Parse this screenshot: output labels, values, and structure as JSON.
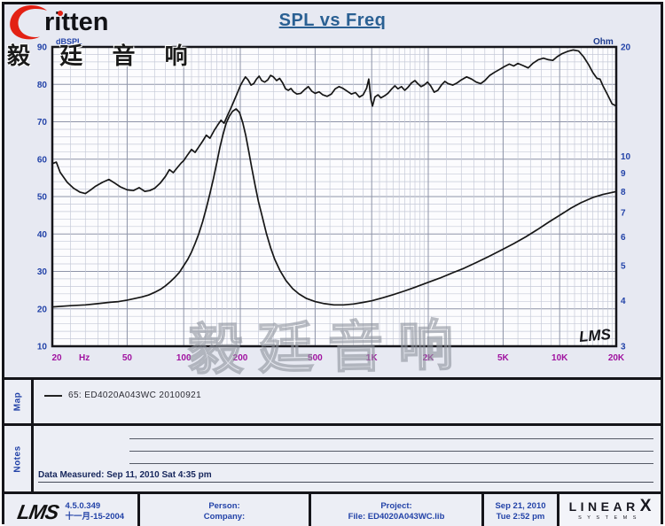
{
  "colors": {
    "accent_blue": "#2343a8",
    "magenta": "#a012a0",
    "title_blue": "#2a6093",
    "navy": "#1d3b8f",
    "curve": "#161616",
    "grid_major": "#8e94a8",
    "grid_minor": "#c6cad8",
    "plot_bg": "#fcfcfe",
    "page_bg": "#e7e9f2",
    "brand_red": "#e32114"
  },
  "logo": {
    "brand": "ritten",
    "subtitle": "毅 廷 音 响"
  },
  "title": "SPL vs Freq",
  "watermark": "毅廷音响",
  "chart_data": {
    "type": "line",
    "title": "SPL vs Freq",
    "x_axis": {
      "scale": "log",
      "range": [
        20,
        20000
      ],
      "unit": "Hz",
      "hz_label": "Hz",
      "tick_values": [
        20,
        50,
        100,
        200,
        500,
        1000,
        2000,
        5000,
        10000,
        20000
      ],
      "tick_labels": [
        "20",
        "50",
        "100",
        "200",
        "500",
        "1K",
        "2K",
        "5K",
        "10K",
        "20K"
      ]
    },
    "y_left": {
      "label": "dBSPL",
      "scale": "linear",
      "range": [
        10,
        90
      ],
      "ticks": [
        90,
        80,
        70,
        60,
        50,
        40,
        30,
        20,
        10
      ]
    },
    "y_right": {
      "label": "Ohm",
      "scale": "log",
      "range": [
        3,
        20
      ],
      "ticks": [
        20,
        10,
        9,
        8,
        7,
        6,
        5,
        4,
        3
      ]
    },
    "inner_logo": "LMS",
    "series": [
      {
        "name": "SPL",
        "axis": "left",
        "points": [
          [
            20,
            58.8
          ],
          [
            21,
            59.2
          ],
          [
            22,
            56.5
          ],
          [
            24,
            53.8
          ],
          [
            26,
            52.2
          ],
          [
            28,
            51.2
          ],
          [
            30,
            50.8
          ],
          [
            32,
            51.8
          ],
          [
            34,
            52.8
          ],
          [
            37,
            53.8
          ],
          [
            40,
            54.6
          ],
          [
            43,
            53.6
          ],
          [
            46,
            52.6
          ],
          [
            50,
            51.8
          ],
          [
            54,
            51.6
          ],
          [
            58,
            52.4
          ],
          [
            62,
            51.4
          ],
          [
            66,
            51.6
          ],
          [
            70,
            52.2
          ],
          [
            75,
            53.6
          ],
          [
            80,
            55.4
          ],
          [
            84,
            57.2
          ],
          [
            88,
            56.4
          ],
          [
            92,
            57.6
          ],
          [
            97,
            59.0
          ],
          [
            100,
            59.6
          ],
          [
            105,
            61.2
          ],
          [
            110,
            62.6
          ],
          [
            115,
            61.8
          ],
          [
            120,
            63.2
          ],
          [
            126,
            64.8
          ],
          [
            132,
            66.4
          ],
          [
            138,
            65.6
          ],
          [
            145,
            67.6
          ],
          [
            152,
            69.2
          ],
          [
            158,
            70.4
          ],
          [
            164,
            69.6
          ],
          [
            170,
            71.4
          ],
          [
            178,
            73.6
          ],
          [
            186,
            75.8
          ],
          [
            192,
            77.4
          ],
          [
            200,
            79.6
          ],
          [
            207,
            81.0
          ],
          [
            213,
            82.0
          ],
          [
            220,
            81.2
          ],
          [
            228,
            79.8
          ],
          [
            236,
            80.2
          ],
          [
            244,
            81.4
          ],
          [
            252,
            82.2
          ],
          [
            260,
            81.0
          ],
          [
            270,
            80.6
          ],
          [
            280,
            81.2
          ],
          [
            290,
            82.4
          ],
          [
            300,
            82.0
          ],
          [
            312,
            81.0
          ],
          [
            324,
            81.6
          ],
          [
            336,
            80.4
          ],
          [
            348,
            78.8
          ],
          [
            360,
            78.4
          ],
          [
            372,
            78.9
          ],
          [
            384,
            78.0
          ],
          [
            400,
            77.4
          ],
          [
            420,
            77.6
          ],
          [
            440,
            78.6
          ],
          [
            460,
            79.4
          ],
          [
            480,
            78.2
          ],
          [
            500,
            77.6
          ],
          [
            525,
            78.0
          ],
          [
            550,
            77.2
          ],
          [
            580,
            76.8
          ],
          [
            610,
            77.4
          ],
          [
            640,
            78.8
          ],
          [
            670,
            79.4
          ],
          [
            700,
            79.0
          ],
          [
            740,
            78.2
          ],
          [
            780,
            77.4
          ],
          [
            820,
            77.8
          ],
          [
            860,
            76.6
          ],
          [
            900,
            77.2
          ],
          [
            940,
            79.0
          ],
          [
            965,
            81.4
          ],
          [
            990,
            76.0
          ],
          [
            1010,
            74.2
          ],
          [
            1040,
            76.6
          ],
          [
            1080,
            77.2
          ],
          [
            1120,
            76.4
          ],
          [
            1170,
            76.9
          ],
          [
            1220,
            77.6
          ],
          [
            1280,
            78.8
          ],
          [
            1330,
            79.6
          ],
          [
            1380,
            78.8
          ],
          [
            1440,
            79.4
          ],
          [
            1500,
            78.4
          ],
          [
            1560,
            79.2
          ],
          [
            1630,
            80.4
          ],
          [
            1700,
            81.0
          ],
          [
            1760,
            80.2
          ],
          [
            1830,
            79.4
          ],
          [
            1900,
            79.8
          ],
          [
            1980,
            80.6
          ],
          [
            2060,
            79.6
          ],
          [
            2150,
            77.9
          ],
          [
            2250,
            78.4
          ],
          [
            2350,
            79.8
          ],
          [
            2450,
            80.8
          ],
          [
            2550,
            80.2
          ],
          [
            2700,
            79.8
          ],
          [
            2850,
            80.4
          ],
          [
            3000,
            81.2
          ],
          [
            3200,
            82.0
          ],
          [
            3400,
            81.4
          ],
          [
            3600,
            80.6
          ],
          [
            3800,
            80.2
          ],
          [
            4000,
            81.0
          ],
          [
            4250,
            82.4
          ],
          [
            4500,
            83.2
          ],
          [
            4800,
            84.0
          ],
          [
            5100,
            84.8
          ],
          [
            5400,
            85.4
          ],
          [
            5700,
            84.9
          ],
          [
            6000,
            85.6
          ],
          [
            6400,
            85.0
          ],
          [
            6800,
            84.4
          ],
          [
            7200,
            85.6
          ],
          [
            7700,
            86.6
          ],
          [
            8200,
            87.0
          ],
          [
            8700,
            86.6
          ],
          [
            9200,
            86.4
          ],
          [
            9700,
            87.4
          ],
          [
            10300,
            88.2
          ],
          [
            11000,
            88.8
          ],
          [
            11800,
            89.2
          ],
          [
            12600,
            88.9
          ],
          [
            13400,
            87.4
          ],
          [
            14200,
            85.4
          ],
          [
            15000,
            83.2
          ],
          [
            15800,
            81.6
          ],
          [
            16400,
            81.4
          ],
          [
            17000,
            79.6
          ],
          [
            18000,
            77.2
          ],
          [
            19000,
            74.8
          ],
          [
            20000,
            74.2
          ]
        ]
      },
      {
        "name": "Impedance",
        "axis": "right",
        "points": [
          [
            20,
            3.85
          ],
          [
            25,
            3.88
          ],
          [
            30,
            3.9
          ],
          [
            35,
            3.93
          ],
          [
            40,
            3.96
          ],
          [
            45,
            3.98
          ],
          [
            50,
            4.02
          ],
          [
            55,
            4.06
          ],
          [
            60,
            4.1
          ],
          [
            65,
            4.15
          ],
          [
            70,
            4.22
          ],
          [
            75,
            4.3
          ],
          [
            80,
            4.4
          ],
          [
            85,
            4.52
          ],
          [
            90,
            4.65
          ],
          [
            95,
            4.8
          ],
          [
            100,
            5.0
          ],
          [
            105,
            5.2
          ],
          [
            110,
            5.45
          ],
          [
            115,
            5.75
          ],
          [
            120,
            6.1
          ],
          [
            126,
            6.6
          ],
          [
            132,
            7.2
          ],
          [
            138,
            7.9
          ],
          [
            144,
            8.7
          ],
          [
            150,
            9.6
          ],
          [
            156,
            10.6
          ],
          [
            162,
            11.5
          ],
          [
            168,
            12.3
          ],
          [
            175,
            12.9
          ],
          [
            182,
            13.3
          ],
          [
            190,
            13.5
          ],
          [
            198,
            13.2
          ],
          [
            206,
            12.4
          ],
          [
            214,
            11.4
          ],
          [
            222,
            10.3
          ],
          [
            230,
            9.3
          ],
          [
            240,
            8.3
          ],
          [
            250,
            7.5
          ],
          [
            262,
            6.8
          ],
          [
            275,
            6.15
          ],
          [
            290,
            5.6
          ],
          [
            305,
            5.2
          ],
          [
            325,
            4.85
          ],
          [
            350,
            4.55
          ],
          [
            380,
            4.32
          ],
          [
            410,
            4.18
          ],
          [
            450,
            4.06
          ],
          [
            500,
            3.98
          ],
          [
            560,
            3.93
          ],
          [
            630,
            3.9
          ],
          [
            710,
            3.9
          ],
          [
            800,
            3.92
          ],
          [
            900,
            3.96
          ],
          [
            1000,
            4.0
          ],
          [
            1150,
            4.08
          ],
          [
            1300,
            4.16
          ],
          [
            1500,
            4.26
          ],
          [
            1700,
            4.36
          ],
          [
            2000,
            4.5
          ],
          [
            2300,
            4.62
          ],
          [
            2700,
            4.78
          ],
          [
            3100,
            4.92
          ],
          [
            3600,
            5.1
          ],
          [
            4200,
            5.3
          ],
          [
            4900,
            5.52
          ],
          [
            5700,
            5.75
          ],
          [
            6600,
            6.0
          ],
          [
            7600,
            6.28
          ],
          [
            8800,
            6.6
          ],
          [
            10000,
            6.88
          ],
          [
            11500,
            7.2
          ],
          [
            13000,
            7.45
          ],
          [
            15000,
            7.7
          ],
          [
            17000,
            7.85
          ],
          [
            20000,
            8.0
          ]
        ]
      }
    ]
  },
  "map": {
    "label": "Map",
    "legend": "65: ED4020A043WC  20100921"
  },
  "notes": {
    "label": "Notes",
    "measured": "Data Measured: Sep 11, 2010  Sat  4:35 pm"
  },
  "footer": {
    "lms": "LMS",
    "version": "4.5.0.349",
    "version_date": "十一月-15-2004",
    "person": "Person:",
    "company": "Company:",
    "project": "Project:",
    "file": "File: ED4020A043WC.lib",
    "date": "Sep 21, 2010",
    "time": "Tue  2:52 pm",
    "brand": "LINEAR",
    "brand_x": "X",
    "brand_sub": "SYSTEMS"
  }
}
